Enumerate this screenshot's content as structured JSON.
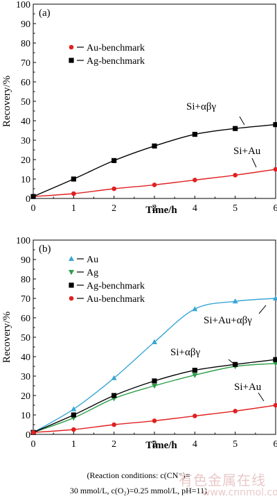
{
  "chart_data": [
    {
      "type": "line",
      "panel_label": "(a)",
      "xlabel": "Time/h",
      "ylabel": "Recovery/%",
      "xlim": [
        0,
        6
      ],
      "ylim": [
        0,
        100
      ],
      "x_ticks": [
        "0",
        "1",
        "2",
        "3",
        "4",
        "5",
        "6"
      ],
      "y_ticks": [
        "0",
        "10",
        "20",
        "30",
        "40",
        "50",
        "60",
        "70",
        "80",
        "90",
        "100"
      ],
      "legend_position": "upper-left",
      "series": [
        {
          "name": "Au-benchmark",
          "color": "#e02020",
          "marker": "circle",
          "x": [
            0,
            1,
            2,
            3,
            4,
            5,
            6
          ],
          "y": [
            1,
            2.5,
            5,
            7,
            9.5,
            12,
            15
          ]
        },
        {
          "name": "Ag-benchmark",
          "color": "#000000",
          "marker": "square",
          "x": [
            0,
            1,
            2,
            3,
            4,
            5,
            6
          ],
          "y": [
            1,
            10,
            19.5,
            27,
            33,
            36,
            38
          ]
        }
      ],
      "annotations": [
        "Si+αβγ",
        "Si+Au"
      ]
    },
    {
      "type": "line",
      "panel_label": "(b)",
      "xlabel": "Time/h",
      "ylabel": "Recovery/%",
      "xlim": [
        0,
        6
      ],
      "ylim": [
        0,
        100
      ],
      "x_ticks": [
        "0",
        "1",
        "2",
        "3",
        "4",
        "5",
        "6"
      ],
      "y_ticks": [
        "0",
        "10",
        "20",
        "30",
        "40",
        "50",
        "60",
        "70",
        "80",
        "90",
        "100"
      ],
      "legend_position": "upper-left",
      "series": [
        {
          "name": "Au",
          "color": "#3aa6d4",
          "marker": "triangle-up",
          "x": [
            0,
            1,
            2,
            3,
            4,
            5,
            6
          ],
          "y": [
            1,
            13,
            29,
            47.5,
            64.5,
            68.5,
            70
          ]
        },
        {
          "name": "Ag",
          "color": "#2e9e48",
          "marker": "triangle-down",
          "x": [
            0,
            1,
            2,
            3,
            4,
            5,
            6
          ],
          "y": [
            1,
            8.5,
            18.5,
            25,
            30.5,
            35,
            36.5
          ]
        },
        {
          "name": "Ag-benchmark",
          "color": "#000000",
          "marker": "square",
          "x": [
            0,
            1,
            2,
            3,
            4,
            5,
            6
          ],
          "y": [
            1,
            10,
            20,
            27.5,
            33,
            36,
            38.5
          ]
        },
        {
          "name": "Au-benchmark",
          "color": "#e02020",
          "marker": "circle",
          "x": [
            0,
            1,
            2,
            3,
            4,
            5,
            6
          ],
          "y": [
            1,
            2.5,
            5,
            7,
            9.5,
            12,
            15
          ]
        }
      ],
      "annotations": [
        "Si+Au+αβγ",
        "Si+αβγ",
        "Si+Au"
      ]
    }
  ],
  "caption": {
    "line1": "(Reaction conditions: c(CN⁻)=",
    "line2": "30 mmol/L, c(O₂)=0.25 mmol/L, pH=11)"
  },
  "watermark": {
    "text": "有色金属在线",
    "url": "www.cnnmol.com"
  }
}
